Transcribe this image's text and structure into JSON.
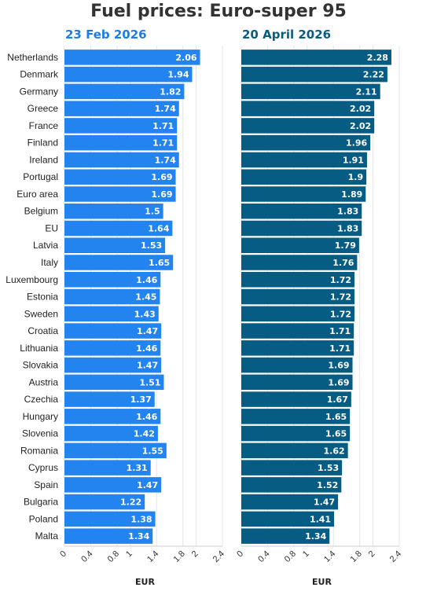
{
  "chart_data": {
    "type": "bar",
    "orientation": "horizontal",
    "title": "Fuel prices: Euro-super 95",
    "categories": [
      "Netherlands",
      "Denmark",
      "Germany",
      "Greece",
      "France",
      "Finland",
      "Ireland",
      "Portugal",
      "Euro area",
      "Belgium",
      "EU",
      "Latvia",
      "Italy",
      "Luxembourg",
      "Estonia",
      "Sweden",
      "Croatia",
      "Lithuania",
      "Slovakia",
      "Austria",
      "Czechia",
      "Hungary",
      "Slovenia",
      "Romania",
      "Cyprus",
      "Spain",
      "Bulgaria",
      "Poland",
      "Malta"
    ],
    "series": [
      {
        "name": "23 Feb 2026",
        "color": "#2384ef",
        "values": [
          2.06,
          1.94,
          1.82,
          1.74,
          1.71,
          1.71,
          1.74,
          1.69,
          1.69,
          1.5,
          1.64,
          1.53,
          1.65,
          1.46,
          1.45,
          1.43,
          1.47,
          1.46,
          1.47,
          1.51,
          1.37,
          1.46,
          1.42,
          1.55,
          1.31,
          1.47,
          1.22,
          1.38,
          1.34
        ]
      },
      {
        "name": "20 April 2026",
        "color": "#075c83",
        "values": [
          2.28,
          2.22,
          2.11,
          2.02,
          2.02,
          1.96,
          1.91,
          1.9,
          1.89,
          1.83,
          1.83,
          1.79,
          1.76,
          1.72,
          1.72,
          1.72,
          1.71,
          1.71,
          1.69,
          1.69,
          1.67,
          1.65,
          1.65,
          1.62,
          1.53,
          1.52,
          1.47,
          1.41,
          1.34
        ]
      }
    ],
    "xticks": [
      "0",
      "0.4",
      "0.8",
      "1",
      "1.4",
      "1.8",
      "2",
      "2.4"
    ],
    "xlim": [
      0,
      2.4
    ],
    "xlabel": "EUR",
    "grid": true
  }
}
